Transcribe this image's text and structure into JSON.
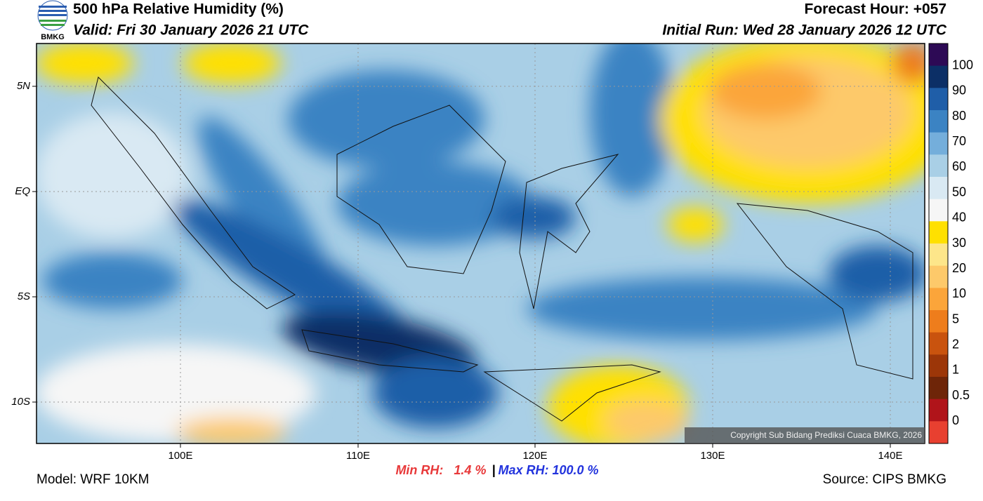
{
  "header": {
    "title": "500 hPa Relative Humidity (%)",
    "valid": "Valid: Fri 30 January 2026 21 UTC",
    "forecast_hour": "Forecast Hour: +057",
    "initial_run": "Initial Run: Wed 28 January 2026 12 UTC",
    "logo_text": "BMKG"
  },
  "map": {
    "lat_labels": [
      "5N",
      "EQ",
      "5S",
      "10S"
    ],
    "lon_labels": [
      "100E",
      "110E",
      "120E",
      "130E",
      "140E"
    ],
    "copyright": "Copyright Sub Bidang Prediksi Cuaca BMKG, 2026"
  },
  "colorbar": {
    "labels": [
      "100",
      "90",
      "80",
      "70",
      "60",
      "50",
      "40",
      "30",
      "20",
      "10",
      "5",
      "2",
      "1",
      "0.5",
      "0"
    ],
    "colors": [
      "#2d0a55",
      "#0c2f66",
      "#1f5ea8",
      "#3b83c3",
      "#74aedb",
      "#a9cfe6",
      "#d9e9f3",
      "#f6f6f6",
      "#ffe000",
      "#fde68a",
      "#fdc96a",
      "#fba53a",
      "#ee7d1c",
      "#c9530e",
      "#9c3608",
      "#6e2508",
      "#b0141a",
      "#e84030"
    ]
  },
  "footer": {
    "model": "Model: WRF 10KM",
    "min_rh": "Min RH:   1.4 %",
    "separator": "|",
    "max_rh": "Max RH: 100.0 %",
    "source": "Source: CIPS BMKG"
  }
}
